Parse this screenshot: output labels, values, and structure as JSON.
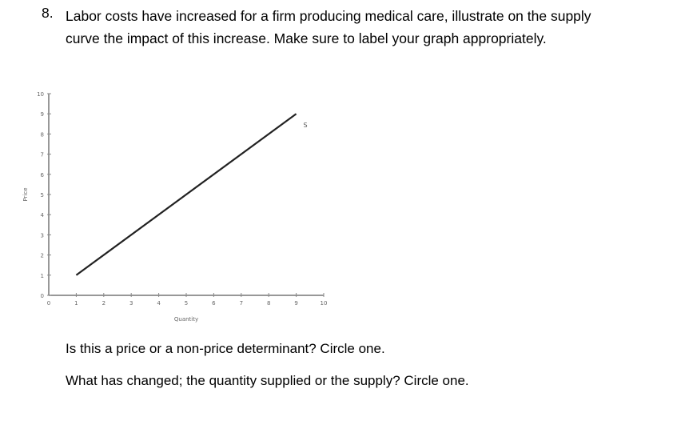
{
  "question": {
    "number": "8.",
    "line1": "Labor costs have increased for a firm producing medical care, illustrate on the supply",
    "line2": "curve the impact of this increase.  Make sure to label your graph appropriately."
  },
  "followups": [
    "Is this a price or a non-price determinant?  Circle one.",
    "What has changed; the quantity supplied or the supply?  Circle one."
  ],
  "chart_data": {
    "type": "line",
    "title": "",
    "xlabel": "Quantity",
    "ylabel": "Price",
    "xlim": [
      0,
      10
    ],
    "ylim": [
      0,
      10
    ],
    "x_ticks": [
      0,
      1,
      2,
      3,
      4,
      5,
      6,
      7,
      8,
      9,
      10
    ],
    "y_ticks": [
      0,
      1,
      2,
      3,
      4,
      5,
      6,
      7,
      8,
      9,
      10
    ],
    "grid": false,
    "legend": "none",
    "series": [
      {
        "name": "S",
        "x": [
          1,
          9
        ],
        "y": [
          1,
          9
        ],
        "color": "#222222"
      }
    ],
    "annotations": [
      {
        "text": "S",
        "x": 9.2,
        "y": 8.5
      }
    ]
  }
}
